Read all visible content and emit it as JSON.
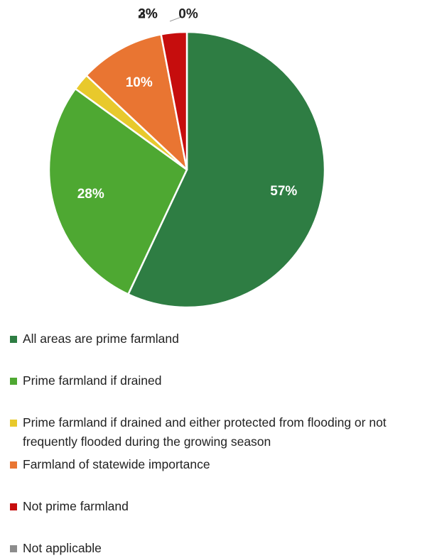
{
  "chart_data": {
    "type": "pie",
    "title": "",
    "series": [
      {
        "values": [
          57,
          28,
          2,
          10,
          3,
          0
        ]
      }
    ],
    "slices": [
      {
        "label": "All areas are prime farmland",
        "value": 57,
        "display": "57%",
        "color": "#2e7d43"
      },
      {
        "label": "Prime farmland if drained",
        "value": 28,
        "display": "28%",
        "color": "#4ea832"
      },
      {
        "label": "Prime farmland if drained and either protected from flooding or not frequently flooded during the growing season",
        "value": 2,
        "display": "2%",
        "color": "#e8c92c"
      },
      {
        "label": "Farmland of statewide importance",
        "value": 10,
        "display": "10%",
        "color": "#e97532"
      },
      {
        "label": "Not prime farmland",
        "value": 3,
        "display": "3%",
        "color": "#c60d0d"
      },
      {
        "label": "Not applicable",
        "value": 0,
        "display": "0%",
        "color": "#8c8c8c"
      }
    ],
    "legend_position": "bottom"
  }
}
